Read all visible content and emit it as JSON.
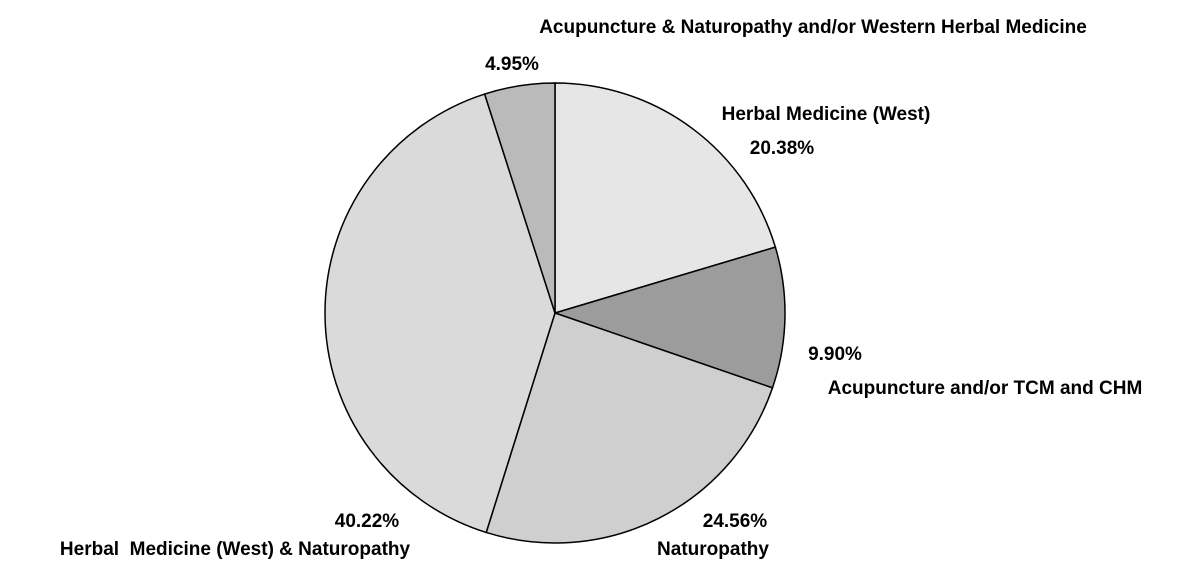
{
  "chart_data": {
    "type": "pie",
    "categories": [
      "Herbal Medicine (West)",
      "Acupuncture and/or TCM and CHM",
      "Naturopathy",
      "Herbal  Medicine (West) & Naturopathy",
      "Acupuncture & Naturopathy and/or Western Herbal Medicine"
    ],
    "values": [
      20.38,
      9.9,
      24.56,
      40.22,
      4.95
    ],
    "value_labels": [
      "20.38%",
      "9.90%",
      "24.56%",
      "40.22%",
      "4.95%"
    ],
    "colors": [
      "#e6e6e6",
      "#9c9c9c",
      "#cfcfcf",
      "#dadada",
      "#bababa"
    ]
  }
}
